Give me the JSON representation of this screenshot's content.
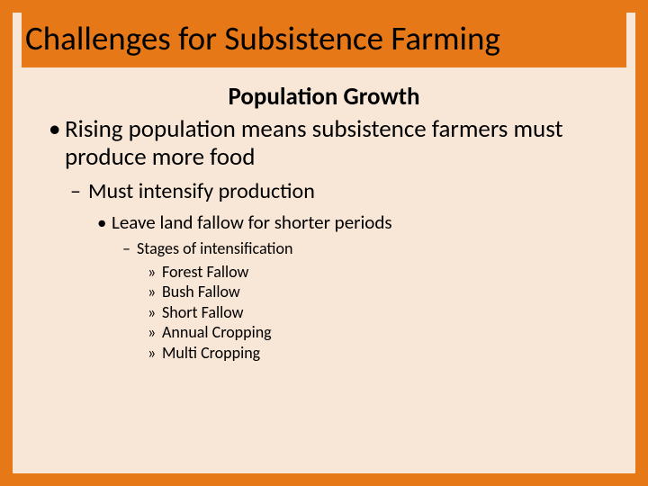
{
  "colors": {
    "background": "#e67817",
    "panel": "#f8e6d6",
    "text": "#000000"
  },
  "typography": {
    "title_fontsize": 37,
    "subtitle_fontsize": 27,
    "lvl1_fontsize": 27,
    "lvl2_fontsize": 24,
    "lvl3_fontsize": 21,
    "lvl4_fontsize": 18,
    "lvl5_fontsize": 18,
    "font_family": "Calibri"
  },
  "bullets": {
    "lvl1": "•",
    "lvl2": "–",
    "lvl3": "•",
    "lvl4": "–",
    "lvl5": "»"
  },
  "title": "Challenges for Subsistence Farming",
  "subtitle": "Population Growth",
  "items": {
    "l1": "Rising population means subsistence farmers must produce more food",
    "l2": "Must intensify production",
    "l3": "Leave land fallow for shorter periods",
    "l4": "Stages of intensification",
    "l5a": "Forest Fallow",
    "l5b": "Bush Fallow",
    "l5c": "Short Fallow",
    "l5d": "Annual Cropping",
    "l5e": "Multi Cropping"
  }
}
